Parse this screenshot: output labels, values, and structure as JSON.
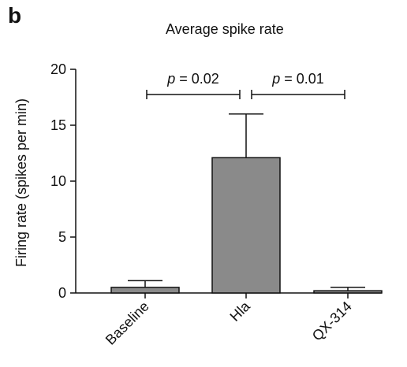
{
  "panel_label": "b",
  "chart_data": {
    "type": "bar",
    "title": "Average spike rate",
    "xlabel": "",
    "ylabel": "Firing rate (spikes per min)",
    "categories": [
      "Baseline",
      "Hla",
      "QX-314"
    ],
    "values": [
      0.5,
      12.1,
      0.2
    ],
    "error_upper": [
      1.1,
      16.0,
      0.5
    ],
    "ylim": [
      0,
      20
    ],
    "yticks": [
      0,
      5,
      10,
      15,
      20
    ],
    "bar_color": "#8a8a8a",
    "grid": false,
    "annotations": [
      {
        "from": 0,
        "to": 1,
        "p_symbol": "p",
        "p_text": " = 0.02"
      },
      {
        "from": 1,
        "to": 2,
        "p_symbol": "p",
        "p_text": " = 0.01"
      }
    ]
  }
}
